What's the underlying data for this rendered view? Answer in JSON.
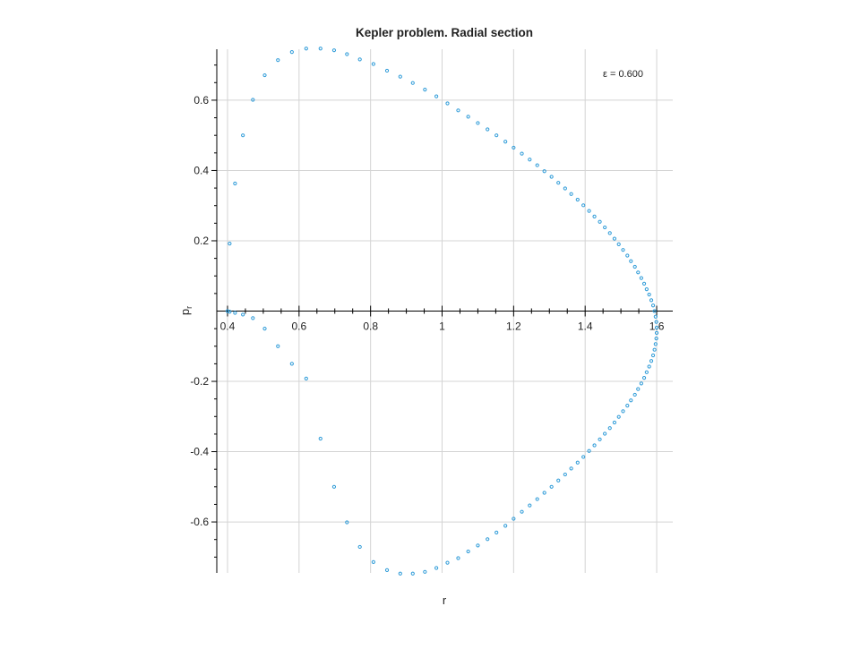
{
  "chart_data": {
    "type": "scatter",
    "title": "Kepler problem. Radial section",
    "xlabel": "r",
    "ylabel": "p",
    "ylabel_subscript": "r",
    "annotation": "ε = 0.600",
    "xlim": [
      0.37,
      1.645
    ],
    "ylim": [
      -0.745,
      0.745
    ],
    "x_ticks": [
      0.4,
      0.6,
      0.8,
      1.0,
      1.2,
      1.4,
      1.6
    ],
    "x_tick_labels": [
      "0.4",
      "0.6",
      "0.8",
      "1",
      "1.2",
      "1.4",
      "1.6"
    ],
    "y_ticks": [
      0.6,
      0.4,
      0.2,
      -0.2,
      -0.4,
      -0.6
    ],
    "y_tick_labels": [
      "0.6",
      "0.4",
      "0.2",
      "-0.2",
      "-0.4",
      "-0.6"
    ],
    "grid": true,
    "marker_color": "#2e9bd8",
    "series": [
      {
        "x": [
          0.4,
          0.406,
          0.421,
          0.443,
          0.471,
          0.504,
          0.541,
          0.58,
          0.62,
          0.66,
          0.698,
          0.734,
          0.77,
          0.808,
          0.846,
          0.883,
          0.918,
          0.952,
          0.984,
          1.015,
          1.045,
          1.073,
          1.1,
          1.127,
          1.152,
          1.177,
          1.2,
          1.223,
          1.245,
          1.266,
          1.286,
          1.306,
          1.325,
          1.344,
          1.361,
          1.379,
          1.395,
          1.411,
          1.426,
          1.441,
          1.455,
          1.469,
          1.482,
          1.494,
          1.506,
          1.518,
          1.528,
          1.539,
          1.548,
          1.557,
          1.565,
          1.572,
          1.579,
          1.585,
          1.59,
          1.594,
          1.597,
          1.599,
          1.6,
          1.6,
          1.599,
          1.597,
          1.594,
          1.59,
          1.585,
          1.579,
          1.572,
          1.565,
          1.557,
          1.548,
          1.539,
          1.528,
          1.518,
          1.506,
          1.494,
          1.482,
          1.469,
          1.455,
          1.441,
          1.426,
          1.411,
          1.395,
          1.379,
          1.361,
          1.344,
          1.325,
          1.306,
          1.286,
          1.266,
          1.245,
          1.223,
          1.2,
          1.177,
          1.152,
          1.127,
          1.1,
          1.073,
          1.045,
          1.015,
          0.984,
          0.952,
          0.918,
          0.883,
          0.846,
          0.808,
          0.77,
          0.734,
          0.698,
          0.66,
          0.62,
          0.58,
          0.541,
          0.504,
          0.471,
          0.443,
          0.421,
          0.406
        ],
        "y": [
          0.0,
          0.192,
          0.363,
          0.5,
          0.601,
          0.671,
          0.714,
          0.737,
          0.747,
          0.747,
          0.742,
          0.731,
          0.716,
          0.703,
          0.684,
          0.667,
          0.649,
          0.63,
          0.611,
          0.591,
          0.571,
          0.553,
          0.535,
          0.517,
          0.5,
          0.482,
          0.465,
          0.448,
          0.431,
          0.415,
          0.398,
          0.382,
          0.365,
          0.349,
          0.333,
          0.317,
          0.301,
          0.285,
          0.269,
          0.254,
          0.238,
          0.222,
          0.206,
          0.19,
          0.174,
          0.158,
          0.142,
          0.126,
          0.11,
          0.094,
          0.078,
          0.062,
          0.047,
          0.031,
          0.016,
          0.0,
          -0.016,
          -0.031,
          -0.047,
          -0.062,
          -0.078,
          -0.094,
          -0.11,
          -0.126,
          -0.142,
          -0.158,
          -0.174,
          -0.19,
          -0.206,
          -0.222,
          -0.238,
          -0.254,
          -0.269,
          -0.285,
          -0.301,
          -0.317,
          -0.333,
          -0.349,
          -0.365,
          -0.382,
          -0.398,
          -0.415,
          -0.431,
          -0.448,
          -0.465,
          -0.482,
          -0.5,
          -0.517,
          -0.535,
          -0.553,
          -0.571,
          -0.591,
          -0.611,
          -0.63,
          -0.649,
          -0.667,
          -0.684,
          -0.703,
          -0.716,
          -0.731,
          -0.742,
          -0.747,
          -0.747,
          -0.737,
          -0.714,
          -0.671,
          -0.601,
          -0.5,
          -0.363,
          -0.192,
          -0.15,
          -0.1,
          -0.05,
          -0.02,
          -0.01,
          -0.005,
          -0.002
        ]
      }
    ]
  }
}
